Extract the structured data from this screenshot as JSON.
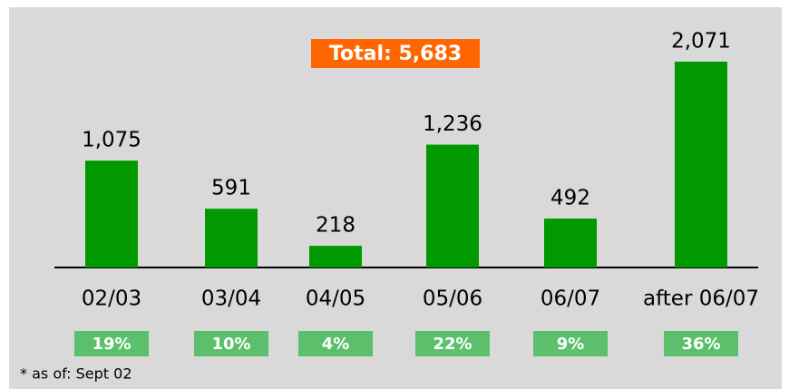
{
  "chart_data": {
    "type": "bar",
    "annotation": "Total: 5,683",
    "categories": [
      "02/03",
      "03/04",
      "04/05",
      "05/06",
      "06/07",
      "after 06/07"
    ],
    "values": [
      1075,
      591,
      218,
      1236,
      492,
      2071
    ],
    "value_labels": [
      "1,075",
      "591",
      "218",
      "1,236",
      "492",
      "2,071"
    ],
    "shares": [
      19,
      10,
      4,
      22,
      9,
      36
    ],
    "share_labels": [
      "19%",
      "10%",
      "4%",
      "22%",
      "9%",
      "36%"
    ],
    "color": "#009900",
    "share_color": "#5cbf6c",
    "footnote": "* as of: Sept 02"
  }
}
